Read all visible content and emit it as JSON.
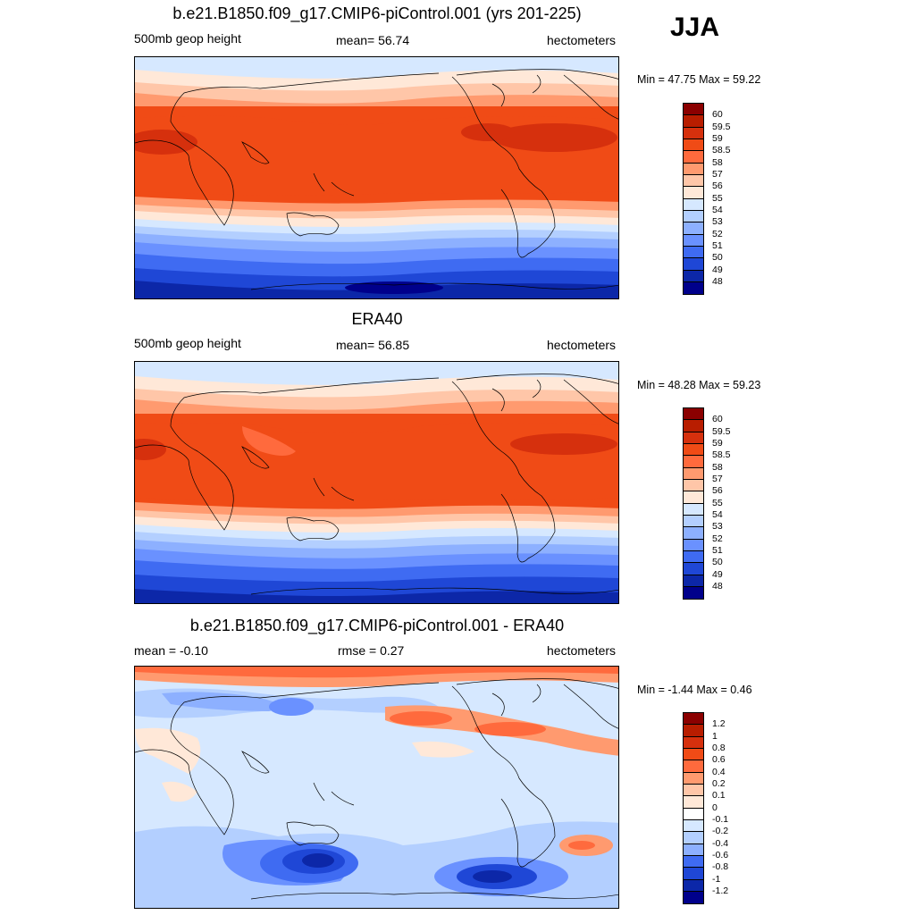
{
  "season": "JJA",
  "panels": [
    {
      "title": "b.e21.B1850.f09_g17.CMIP6-piControl.001 (yrs 201-225)",
      "left_label": "500mb geop height",
      "center_label": "mean=  56.74",
      "right_label": "hectometers",
      "minmax": "Min =  47.75 Max =  59.22",
      "colorbar": {
        "labels": [
          "60",
          "59.5",
          "59",
          "58.5",
          "58",
          "57",
          "56",
          "55",
          "54",
          "53",
          "52",
          "51",
          "50",
          "49",
          "48"
        ],
        "colors": [
          "#8b0000",
          "#b81d00",
          "#d6300d",
          "#f04b16",
          "#ff6a3d",
          "#ff9a6f",
          "#ffc6a8",
          "#ffe8d8",
          "#d6e8ff",
          "#b3cfff",
          "#8db0ff",
          "#6a91ff",
          "#3f6bf2",
          "#1f47d6",
          "#0c27a8",
          "#00008b"
        ]
      }
    },
    {
      "title": "ERA40",
      "left_label": "500mb geop height",
      "center_label": "mean=  56.85",
      "right_label": "hectometers",
      "minmax": "Min =  48.28 Max =  59.23",
      "colorbar": {
        "labels": [
          "60",
          "59.5",
          "59",
          "58.5",
          "58",
          "57",
          "56",
          "55",
          "54",
          "53",
          "52",
          "51",
          "50",
          "49",
          "48"
        ],
        "colors": [
          "#8b0000",
          "#b81d00",
          "#d6300d",
          "#f04b16",
          "#ff6a3d",
          "#ff9a6f",
          "#ffc6a8",
          "#ffe8d8",
          "#d6e8ff",
          "#b3cfff",
          "#8db0ff",
          "#6a91ff",
          "#3f6bf2",
          "#1f47d6",
          "#0c27a8",
          "#00008b"
        ]
      }
    },
    {
      "title": "b.e21.B1850.f09_g17.CMIP6-piControl.001 - ERA40",
      "left_label": "mean =  -0.10",
      "center_label": "rmse =   0.27",
      "right_label": "hectometers",
      "minmax": "Min =  -1.44 Max =   0.46",
      "colorbar": {
        "labels": [
          "1.2",
          "1",
          "0.8",
          "0.6",
          "0.4",
          "0.2",
          "0.1",
          "0",
          "-0.1",
          "-0.2",
          "-0.4",
          "-0.6",
          "-0.8",
          "-1",
          "-1.2"
        ],
        "colors": [
          "#8b0000",
          "#b81d00",
          "#d6300d",
          "#f04b16",
          "#ff6a3d",
          "#ff9a6f",
          "#ffc6a8",
          "#ffe8d8",
          "#ffffff",
          "#d6e8ff",
          "#b3cfff",
          "#8db0ff",
          "#3f6bf2",
          "#1f47d6",
          "#0c27a8",
          "#00008b"
        ]
      }
    }
  ]
}
